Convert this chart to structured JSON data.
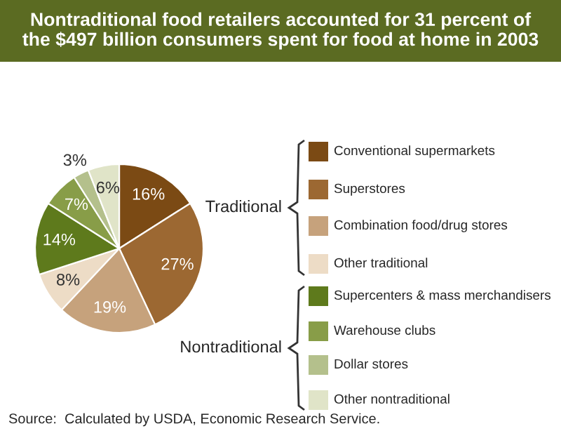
{
  "chart_data": {
    "type": "pie",
    "title": "Nontraditional food retailers accounted for 31 percent of\nthe $497 billion consumers spent for food at home in 2003",
    "categories": [
      "Conventional supermarkets",
      "Superstores",
      "Combination food/drug stores",
      "Other traditional",
      "Supercenters & mass merchandisers",
      "Warehouse clubs",
      "Dollar stores",
      "Other nontraditional"
    ],
    "values": [
      16,
      27,
      19,
      8,
      14,
      7,
      3,
      6
    ],
    "value_labels": [
      "16%",
      "27%",
      "19%",
      "8%",
      "14%",
      "7%",
      "3%",
      "6%"
    ],
    "colors": [
      "#7b4a14",
      "#9c6832",
      "#c6a27c",
      "#eddcc6",
      "#5e7a1c",
      "#889d48",
      "#b4c08c",
      "#e0e4c8"
    ],
    "legend": "right",
    "annotations": [
      "Traditional",
      "Nontraditional",
      "Source:  Calculated by USDA, Economic Research Service."
    ]
  }
}
